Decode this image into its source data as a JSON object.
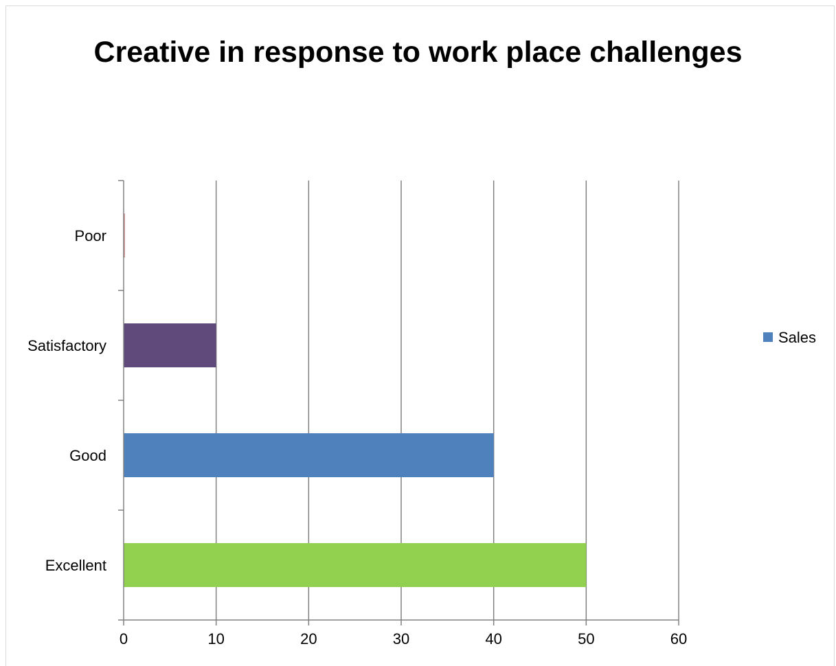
{
  "chart_data": {
    "type": "bar",
    "orientation": "horizontal",
    "title": "Creative in response to work place challenges",
    "categories": [
      "Excellent",
      "Good",
      "Satisfactory",
      "Poor"
    ],
    "values": [
      50,
      40,
      10,
      0
    ],
    "bar_colors": [
      "#92d050",
      "#4f81bd",
      "#604a7b",
      "#c0504d"
    ],
    "series": [
      {
        "name": "Sales",
        "values": [
          50,
          40,
          10,
          0
        ]
      }
    ],
    "legend": {
      "position": "right",
      "entries": [
        {
          "label": "Sales",
          "color": "#4f81bd"
        }
      ]
    },
    "xlim": [
      0,
      60
    ],
    "x_ticks": [
      0,
      10,
      20,
      30,
      40,
      50,
      60
    ],
    "grid": true,
    "grid_color": "#808080",
    "xlabel": "",
    "ylabel": ""
  }
}
